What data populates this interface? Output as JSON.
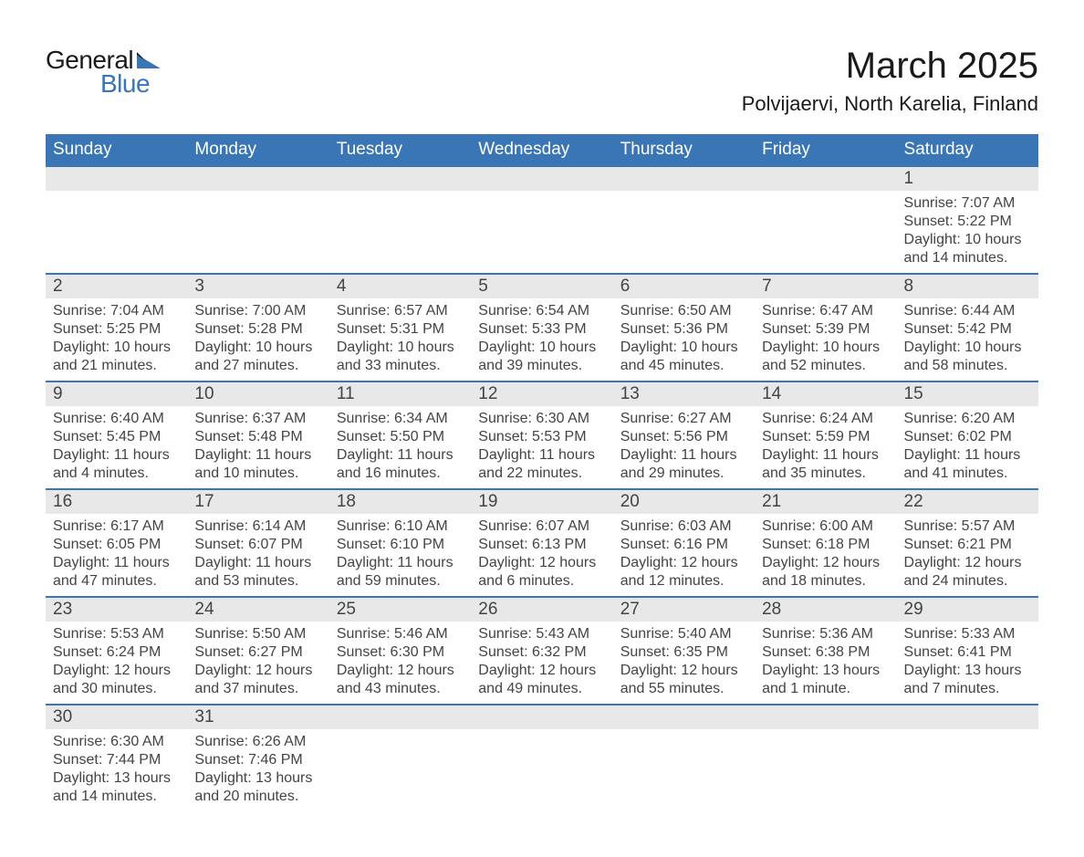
{
  "logo": {
    "general": "General",
    "blue": "Blue"
  },
  "title": {
    "month": "March 2025",
    "location": "Polvijaervi, North Karelia, Finland"
  },
  "colors": {
    "header_bg": "#3a76b5",
    "header_text": "#ffffff",
    "day_bg": "#e8e8e8",
    "border": "#3a76b5",
    "text": "#444444",
    "logo_blue": "#3a76b5"
  },
  "day_headers": [
    "Sunday",
    "Monday",
    "Tuesday",
    "Wednesday",
    "Thursday",
    "Friday",
    "Saturday"
  ],
  "weeks": [
    {
      "days": [
        null,
        null,
        null,
        null,
        null,
        null,
        {
          "n": "1",
          "sunrise": "7:07 AM",
          "sunset": "5:22 PM",
          "daylight": "10 hours and 14 minutes."
        }
      ]
    },
    {
      "days": [
        {
          "n": "2",
          "sunrise": "7:04 AM",
          "sunset": "5:25 PM",
          "daylight": "10 hours and 21 minutes."
        },
        {
          "n": "3",
          "sunrise": "7:00 AM",
          "sunset": "5:28 PM",
          "daylight": "10 hours and 27 minutes."
        },
        {
          "n": "4",
          "sunrise": "6:57 AM",
          "sunset": "5:31 PM",
          "daylight": "10 hours and 33 minutes."
        },
        {
          "n": "5",
          "sunrise": "6:54 AM",
          "sunset": "5:33 PM",
          "daylight": "10 hours and 39 minutes."
        },
        {
          "n": "6",
          "sunrise": "6:50 AM",
          "sunset": "5:36 PM",
          "daylight": "10 hours and 45 minutes."
        },
        {
          "n": "7",
          "sunrise": "6:47 AM",
          "sunset": "5:39 PM",
          "daylight": "10 hours and 52 minutes."
        },
        {
          "n": "8",
          "sunrise": "6:44 AM",
          "sunset": "5:42 PM",
          "daylight": "10 hours and 58 minutes."
        }
      ]
    },
    {
      "days": [
        {
          "n": "9",
          "sunrise": "6:40 AM",
          "sunset": "5:45 PM",
          "daylight": "11 hours and 4 minutes."
        },
        {
          "n": "10",
          "sunrise": "6:37 AM",
          "sunset": "5:48 PM",
          "daylight": "11 hours and 10 minutes."
        },
        {
          "n": "11",
          "sunrise": "6:34 AM",
          "sunset": "5:50 PM",
          "daylight": "11 hours and 16 minutes."
        },
        {
          "n": "12",
          "sunrise": "6:30 AM",
          "sunset": "5:53 PM",
          "daylight": "11 hours and 22 minutes."
        },
        {
          "n": "13",
          "sunrise": "6:27 AM",
          "sunset": "5:56 PM",
          "daylight": "11 hours and 29 minutes."
        },
        {
          "n": "14",
          "sunrise": "6:24 AM",
          "sunset": "5:59 PM",
          "daylight": "11 hours and 35 minutes."
        },
        {
          "n": "15",
          "sunrise": "6:20 AM",
          "sunset": "6:02 PM",
          "daylight": "11 hours and 41 minutes."
        }
      ]
    },
    {
      "days": [
        {
          "n": "16",
          "sunrise": "6:17 AM",
          "sunset": "6:05 PM",
          "daylight": "11 hours and 47 minutes."
        },
        {
          "n": "17",
          "sunrise": "6:14 AM",
          "sunset": "6:07 PM",
          "daylight": "11 hours and 53 minutes."
        },
        {
          "n": "18",
          "sunrise": "6:10 AM",
          "sunset": "6:10 PM",
          "daylight": "11 hours and 59 minutes."
        },
        {
          "n": "19",
          "sunrise": "6:07 AM",
          "sunset": "6:13 PM",
          "daylight": "12 hours and 6 minutes."
        },
        {
          "n": "20",
          "sunrise": "6:03 AM",
          "sunset": "6:16 PM",
          "daylight": "12 hours and 12 minutes."
        },
        {
          "n": "21",
          "sunrise": "6:00 AM",
          "sunset": "6:18 PM",
          "daylight": "12 hours and 18 minutes."
        },
        {
          "n": "22",
          "sunrise": "5:57 AM",
          "sunset": "6:21 PM",
          "daylight": "12 hours and 24 minutes."
        }
      ]
    },
    {
      "days": [
        {
          "n": "23",
          "sunrise": "5:53 AM",
          "sunset": "6:24 PM",
          "daylight": "12 hours and 30 minutes."
        },
        {
          "n": "24",
          "sunrise": "5:50 AM",
          "sunset": "6:27 PM",
          "daylight": "12 hours and 37 minutes."
        },
        {
          "n": "25",
          "sunrise": "5:46 AM",
          "sunset": "6:30 PM",
          "daylight": "12 hours and 43 minutes."
        },
        {
          "n": "26",
          "sunrise": "5:43 AM",
          "sunset": "6:32 PM",
          "daylight": "12 hours and 49 minutes."
        },
        {
          "n": "27",
          "sunrise": "5:40 AM",
          "sunset": "6:35 PM",
          "daylight": "12 hours and 55 minutes."
        },
        {
          "n": "28",
          "sunrise": "5:36 AM",
          "sunset": "6:38 PM",
          "daylight": "13 hours and 1 minute."
        },
        {
          "n": "29",
          "sunrise": "5:33 AM",
          "sunset": "6:41 PM",
          "daylight": "13 hours and 7 minutes."
        }
      ]
    },
    {
      "days": [
        {
          "n": "30",
          "sunrise": "6:30 AM",
          "sunset": "7:44 PM",
          "daylight": "13 hours and 14 minutes."
        },
        {
          "n": "31",
          "sunrise": "6:26 AM",
          "sunset": "7:46 PM",
          "daylight": "13 hours and 20 minutes."
        },
        null,
        null,
        null,
        null,
        null
      ]
    }
  ],
  "labels": {
    "sunrise": "Sunrise: ",
    "sunset": "Sunset: ",
    "daylight": "Daylight: "
  }
}
